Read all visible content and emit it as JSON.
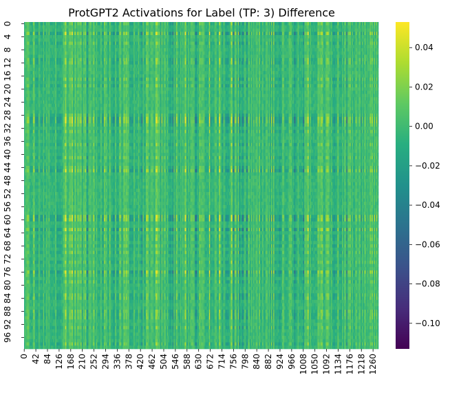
{
  "chart_data": {
    "type": "heatmap",
    "title": "ProtGPT2 Activations for Label (TP: 3) Difference",
    "xlabel": "",
    "ylabel": "",
    "rows": 100,
    "cols": 1280,
    "colormap": "viridis",
    "color_range": [
      -0.113,
      0.053
    ],
    "x_tick_labels": [
      "0",
      "42",
      "84",
      "126",
      "168",
      "210",
      "252",
      "294",
      "336",
      "378",
      "420",
      "462",
      "504",
      "546",
      "588",
      "630",
      "672",
      "714",
      "756",
      "798",
      "840",
      "882",
      "924",
      "966",
      "1008",
      "1050",
      "1092",
      "1134",
      "1176",
      "1218",
      "1260"
    ],
    "y_tick_labels": [
      "0",
      "4",
      "8",
      "12",
      "16",
      "20",
      "24",
      "28",
      "32",
      "36",
      "40",
      "44",
      "48",
      "52",
      "56",
      "60",
      "64",
      "68",
      "72",
      "76",
      "80",
      "84",
      "88",
      "92",
      "96"
    ],
    "colorbar_ticks": [
      "0.04",
      "0.02",
      "0.00",
      "−0.02",
      "−0.04",
      "−0.06",
      "−0.08",
      "−0.10"
    ],
    "colorbar_tick_values": [
      0.04,
      0.02,
      0.0,
      -0.02,
      -0.04,
      -0.06,
      -0.08,
      -0.1
    ],
    "grid": false,
    "colorbar": true
  }
}
